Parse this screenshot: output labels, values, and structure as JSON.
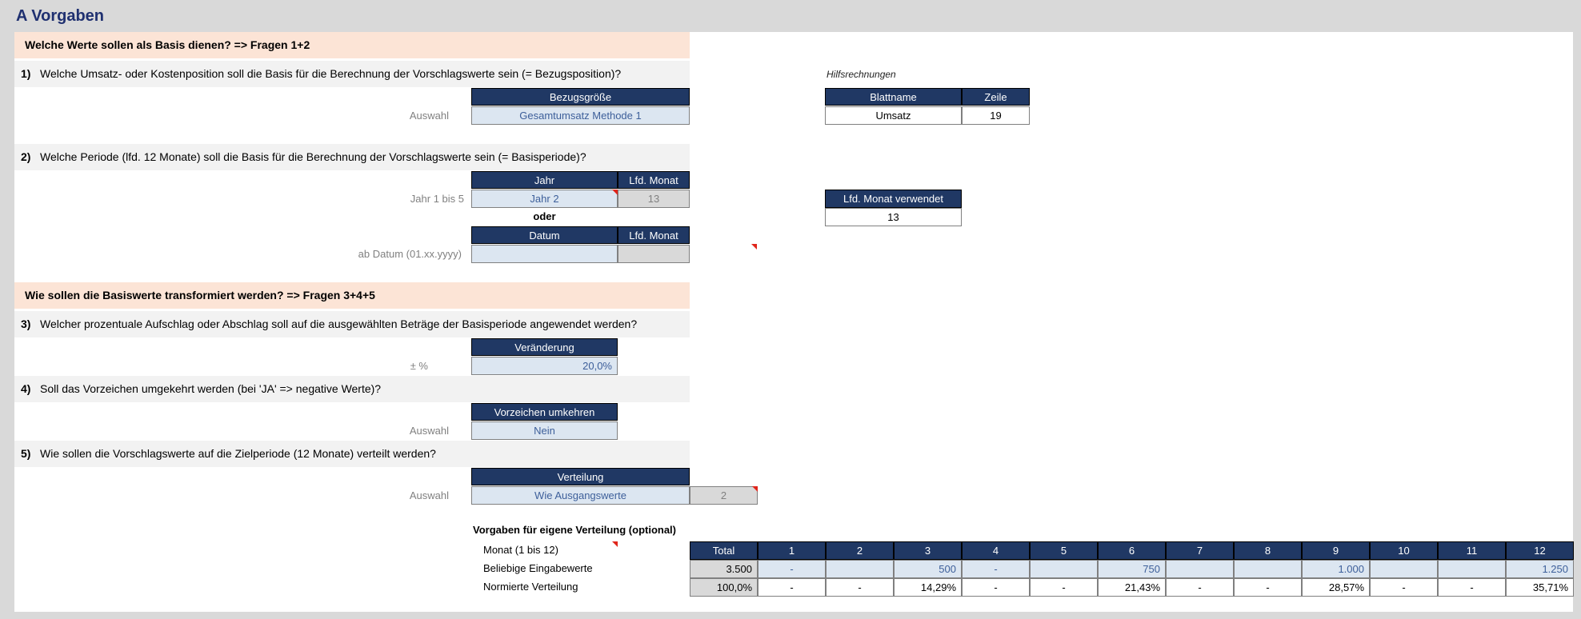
{
  "title": "A   Vorgaben",
  "section1": "Welche Werte sollen als Basis dienen?  => Fragen 1+2",
  "section2": "Wie sollen die Basiswerte transformiert werden?  => Fragen 3+4+5",
  "q1": {
    "num": "1)",
    "text": "Welche Umsatz- oder Kostenposition soll die Basis für die Berechnung der Vorschlagswerte sein (= Bezugsposition)?",
    "label": "Auswahl",
    "header": "Bezugsgröße",
    "value": "Gesamtumsatz Methode 1"
  },
  "helper": {
    "caption": "Hilfsrechnungen",
    "h1": "Blattname",
    "h2": "Zeile",
    "v1": "Umsatz",
    "v2": "19",
    "lfd_header": "Lfd. Monat verwendet",
    "lfd_value": "13"
  },
  "q2": {
    "num": "2)",
    "text": "Welche Periode (lfd. 12 Monate) soll die Basis für die Berechnung der Vorschlagswerte sein (= Basisperiode)?",
    "label1": "Jahr 1 bis 5",
    "h_jahr": "Jahr",
    "h_lfd": "Lfd. Monat",
    "v_jahr": "Jahr 2",
    "v_lfd": "13",
    "oder": "oder",
    "label2": "ab Datum (01.xx.yyyy)",
    "h_datum": "Datum",
    "h_lfd2": "Lfd. Monat",
    "v_datum": "",
    "v_lfd2": ""
  },
  "q3": {
    "num": "3)",
    "text": "Welcher prozentuale Aufschlag oder Abschlag soll auf die ausgewählten Beträge der Basisperiode angewendet werden?",
    "label": "± %",
    "header": "Veränderung",
    "value": "20,0%"
  },
  "q4": {
    "num": "4)",
    "text": "Soll das Vorzeichen umgekehrt werden (bei 'JA' => negative Werte)?",
    "label": "Auswahl",
    "header": "Vorzeichen umkehren",
    "value": "Nein"
  },
  "q5": {
    "num": "5)",
    "text": "Wie sollen die Vorschlagswerte auf die Zielperiode (12 Monate) verteilt werden?",
    "label": "Auswahl",
    "header": "Verteilung",
    "value": "Wie Ausgangswerte",
    "code": "2"
  },
  "dist": {
    "title": "Vorgaben für eigene Verteilung (optional)",
    "row0_label": "Monat (1 bis 12)",
    "row1_label": "Beliebige Eingabewerte",
    "row2_label": "Normierte Verteilung",
    "headers": [
      "Total",
      "1",
      "2",
      "3",
      "4",
      "5",
      "6",
      "7",
      "8",
      "9",
      "10",
      "11",
      "12"
    ],
    "inputs": [
      "3.500",
      "-",
      "",
      "500",
      "-",
      "",
      "750",
      "",
      "",
      "1.000",
      "",
      "",
      "1.250"
    ],
    "normed": [
      "100,0%",
      "-",
      "-",
      "14,29%",
      "-",
      "-",
      "21,43%",
      "-",
      "-",
      "28,57%",
      "-",
      "-",
      "35,71%"
    ]
  }
}
